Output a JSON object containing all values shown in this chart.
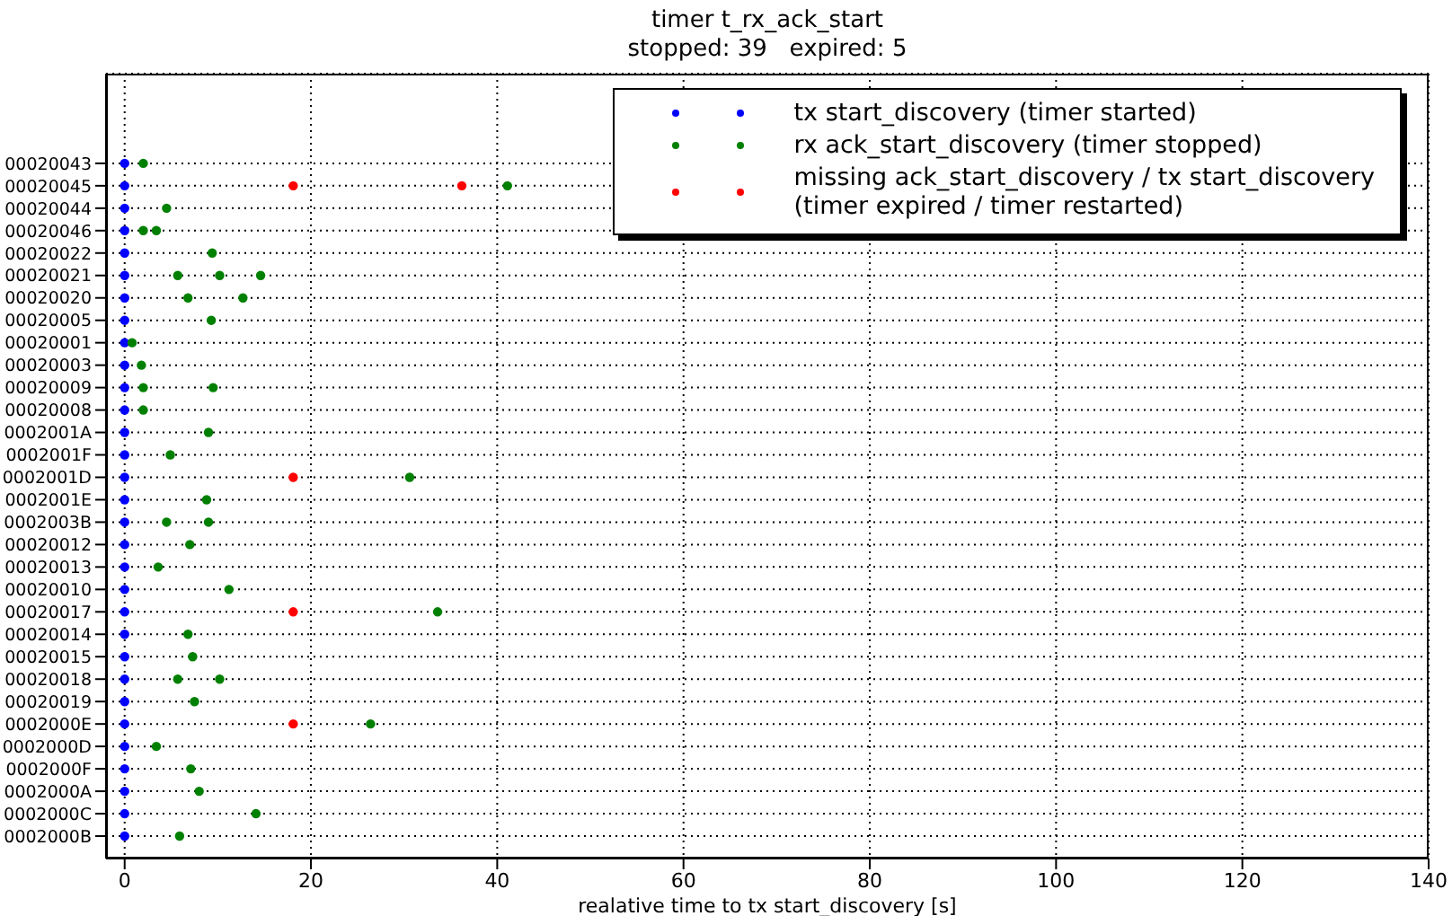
{
  "chart_data": {
    "type": "scatter",
    "orientation": "horizontal",
    "title": "timer t_rx_ack_start",
    "subtitle": "stopped: 39   expired: 5",
    "xlabel": "realative time to tx start_discovery [s]",
    "categories": [
      "00020043",
      "00020045",
      "00020044",
      "00020046",
      "00020022",
      "00020021",
      "00020020",
      "00020005",
      "00020001",
      "00020003",
      "00020009",
      "00020008",
      "0002001A",
      "0002001F",
      "0002001D",
      "0002001E",
      "0002003B",
      "00020012",
      "00020013",
      "00020010",
      "00020017",
      "00020014",
      "00020015",
      "00020018",
      "00020019",
      "0002000E",
      "0002000D",
      "0002000F",
      "0002000A",
      "0002000C",
      "0002000B"
    ],
    "xlim": [
      -2,
      140
    ],
    "xticks": [
      0,
      20,
      40,
      60,
      80,
      100,
      120,
      140
    ],
    "grid": true,
    "legend": "top right",
    "marker": "circle",
    "series": [
      {
        "name": "tx start_discovery (timer started)",
        "color": "#0000ff",
        "x": [
          "00020043",
          "00020045",
          "00020044",
          "00020046",
          "00020022",
          "00020021",
          "00020020",
          "00020005",
          "00020001",
          "00020003",
          "00020009",
          "00020008",
          "0002001A",
          "0002001F",
          "0002001D",
          "0002001E",
          "0002003B",
          "00020012",
          "00020013",
          "00020010",
          "00020017",
          "00020014",
          "00020015",
          "00020018",
          "00020019",
          "0002000E",
          "0002000D",
          "0002000F",
          "0002000A",
          "0002000C",
          "0002000B"
        ],
        "values": [
          0,
          0,
          0,
          0,
          0,
          0,
          0,
          0,
          0,
          0,
          0,
          0,
          0,
          0,
          0,
          0,
          0,
          0,
          0,
          0,
          0,
          0,
          0,
          0,
          0,
          0,
          0,
          0,
          0,
          0,
          0
        ]
      },
      {
        "name": "rx ack_start_discovery (timer stopped)",
        "color": "#008000",
        "x": [
          "00020043",
          "00020045",
          "00020044",
          "00020046",
          "00020046",
          "00020022",
          "00020021",
          "00020021",
          "00020021",
          "00020020",
          "00020020",
          "00020005",
          "00020001",
          "00020003",
          "00020009",
          "00020009",
          "00020008",
          "0002001A",
          "0002001F",
          "0002001D",
          "0002001E",
          "0002003B",
          "0002003B",
          "00020012",
          "00020013",
          "00020010",
          "00020017",
          "00020014",
          "00020015",
          "00020018",
          "00020018",
          "00020019",
          "0002000E",
          "0002000D",
          "0002000F",
          "0002000A",
          "0002000C",
          "0002000B"
        ],
        "values": [
          2.0,
          41.1,
          4.5,
          2.0,
          3.4,
          9.4,
          5.7,
          10.2,
          14.6,
          6.8,
          12.7,
          9.3,
          0.8,
          1.8,
          2.0,
          9.5,
          2.0,
          9.0,
          4.9,
          30.6,
          8.8,
          4.5,
          9.0,
          7.0,
          3.6,
          11.2,
          33.6,
          6.8,
          7.3,
          5.7,
          10.2,
          7.5,
          26.4,
          3.4,
          7.1,
          8.0,
          14.1,
          5.9
        ]
      },
      {
        "name": "missing ack_start_discovery / tx start_discovery\n(timer expired / timer restarted)",
        "color": "#ff0000",
        "x": [
          "00020045",
          "00020045",
          "0002001D",
          "00020017",
          "0002000E"
        ],
        "values": [
          18.1,
          36.2,
          18.1,
          18.1,
          18.1
        ]
      }
    ]
  }
}
